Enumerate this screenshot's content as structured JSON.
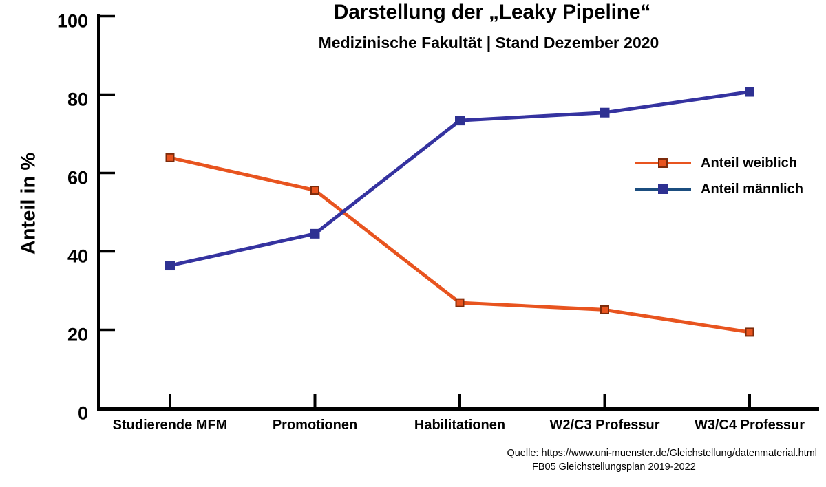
{
  "chart_data": {
    "type": "line",
    "title": "Darstellung der „Leaky Pipeline“",
    "subtitle": "Medizinische Fakultät | Stand Dezember 2020",
    "ylabel": "Anteil in %",
    "xlabel": "",
    "ylim": [
      0,
      100
    ],
    "yticks": [
      0,
      20,
      40,
      60,
      80,
      100
    ],
    "grid": false,
    "legend_position": "right-middle",
    "categories": [
      "Studierende MFM",
      "Promotionen",
      "Habilitationen",
      "W2/C3 Professur",
      "W3/C4 Professur"
    ],
    "series": [
      {
        "name": "Anteil weiblich",
        "values": [
          63.9,
          55.6,
          26.9,
          25.1,
          19.4
        ],
        "line_color": "#E8541F",
        "marker_color": "#E8541F",
        "marker_border_color": "#7D2B0B",
        "legend_line_color": "#E8541F"
      },
      {
        "name": "Anteil männlich",
        "values": [
          36.4,
          44.5,
          73.4,
          75.4,
          80.7
        ],
        "line_color": "#3533A0",
        "marker_color": "#2E3192",
        "marker_border_color": "#2E3192",
        "legend_line_color": "#1B4D7F"
      }
    ],
    "axis_color": "#000000",
    "text_color": "#000000"
  },
  "footer": {
    "source_line1": "Quelle: https://www.uni-muenster.de/Gleichstellung/datenmaterial.html",
    "source_line2": "FB05 Gleichstellungsplan 2019-2022"
  }
}
